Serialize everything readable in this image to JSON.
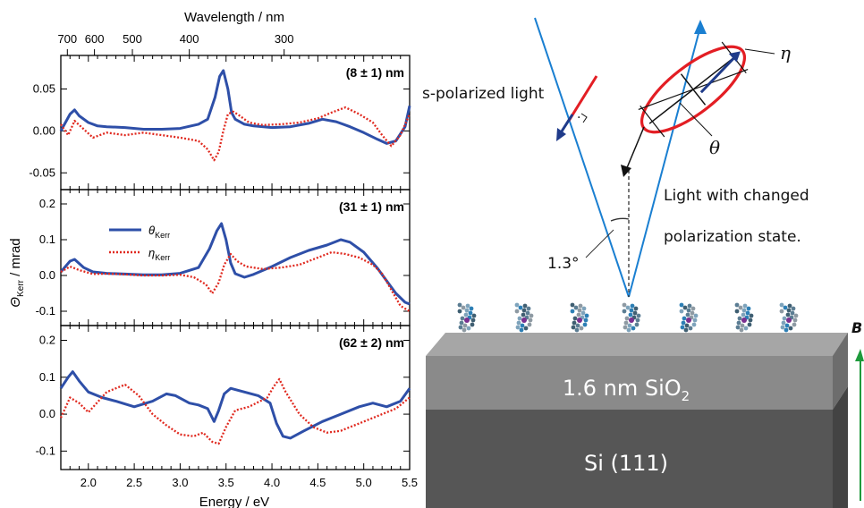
{
  "figure": {
    "top_axis_title": "Wavelength / nm",
    "top_axis_ticks": [
      {
        "label": "700",
        "nm": 700
      },
      {
        "label": "600",
        "nm": 600
      },
      {
        "label": "500",
        "nm": 500
      },
      {
        "label": "400",
        "nm": 400
      },
      {
        "label": "300",
        "nm": 300
      }
    ],
    "x_axis_title": "Energy / eV",
    "y_axis_title_main": "Θ",
    "y_axis_title_sub": "Kerr",
    "y_axis_title_unit": " / mrad",
    "legend": [
      {
        "symbol": "θ",
        "sub": "Kerr",
        "color": "#2e4fa8",
        "style": "solid"
      },
      {
        "symbol": "η",
        "sub": "Kerr",
        "color": "#e0291f",
        "style": "dotted"
      }
    ]
  },
  "chart_data": [
    {
      "type": "line",
      "panel_label": "(8 ± 1) nm",
      "xlim": [
        1.7,
        5.5
      ],
      "ylim": [
        -0.07,
        0.09
      ],
      "yticks": [
        -0.05,
        0.0,
        0.05
      ],
      "ytick_labels": [
        "-0.05",
        "0.00",
        "0.05"
      ],
      "series": [
        {
          "name": "θKerr",
          "color": "#2e4fa8",
          "points": [
            [
              1.7,
              0.0
            ],
            [
              1.8,
              0.02
            ],
            [
              1.85,
              0.025
            ],
            [
              1.9,
              0.018
            ],
            [
              2.0,
              0.01
            ],
            [
              2.1,
              0.006
            ],
            [
              2.2,
              0.005
            ],
            [
              2.4,
              0.004
            ],
            [
              2.6,
              0.002
            ],
            [
              2.8,
              0.002
            ],
            [
              3.0,
              0.003
            ],
            [
              3.2,
              0.008
            ],
            [
              3.3,
              0.014
            ],
            [
              3.38,
              0.04
            ],
            [
              3.43,
              0.065
            ],
            [
              3.47,
              0.072
            ],
            [
              3.52,
              0.05
            ],
            [
              3.56,
              0.022
            ],
            [
              3.6,
              0.014
            ],
            [
              3.7,
              0.008
            ],
            [
              3.8,
              0.006
            ],
            [
              4.0,
              0.004
            ],
            [
              4.2,
              0.005
            ],
            [
              4.4,
              0.009
            ],
            [
              4.55,
              0.014
            ],
            [
              4.7,
              0.011
            ],
            [
              4.85,
              0.005
            ],
            [
              5.0,
              -0.002
            ],
            [
              5.15,
              -0.01
            ],
            [
              5.25,
              -0.015
            ],
            [
              5.35,
              -0.012
            ],
            [
              5.45,
              0.005
            ],
            [
              5.5,
              0.03
            ]
          ]
        },
        {
          "name": "ηKerr",
          "color": "#e0291f",
          "points": [
            [
              1.7,
              0.008
            ],
            [
              1.78,
              -0.005
            ],
            [
              1.85,
              0.012
            ],
            [
              1.95,
              0.002
            ],
            [
              2.05,
              -0.008
            ],
            [
              2.2,
              -0.002
            ],
            [
              2.4,
              -0.005
            ],
            [
              2.6,
              -0.002
            ],
            [
              2.8,
              -0.005
            ],
            [
              3.0,
              -0.008
            ],
            [
              3.2,
              -0.012
            ],
            [
              3.3,
              -0.022
            ],
            [
              3.37,
              -0.035
            ],
            [
              3.42,
              -0.025
            ],
            [
              3.47,
              0.0
            ],
            [
              3.52,
              0.02
            ],
            [
              3.58,
              0.023
            ],
            [
              3.65,
              0.018
            ],
            [
              3.75,
              0.01
            ],
            [
              3.9,
              0.007
            ],
            [
              4.1,
              0.008
            ],
            [
              4.3,
              0.01
            ],
            [
              4.5,
              0.015
            ],
            [
              4.65,
              0.022
            ],
            [
              4.8,
              0.028
            ],
            [
              4.95,
              0.02
            ],
            [
              5.1,
              0.01
            ],
            [
              5.2,
              -0.005
            ],
            [
              5.3,
              -0.018
            ],
            [
              5.4,
              -0.005
            ],
            [
              5.5,
              0.02
            ]
          ]
        }
      ]
    },
    {
      "type": "line",
      "panel_label": "(31 ± 1) nm",
      "xlim": [
        1.7,
        5.5
      ],
      "ylim": [
        -0.14,
        0.24
      ],
      "yticks": [
        -0.1,
        0.0,
        0.1,
        0.2
      ],
      "ytick_labels": [
        "-0.1",
        "0.0",
        "0.1",
        "0.2"
      ],
      "series": [
        {
          "name": "θKerr",
          "color": "#2e4fa8",
          "points": [
            [
              1.7,
              0.01
            ],
            [
              1.8,
              0.04
            ],
            [
              1.85,
              0.045
            ],
            [
              1.95,
              0.022
            ],
            [
              2.05,
              0.01
            ],
            [
              2.2,
              0.006
            ],
            [
              2.4,
              0.004
            ],
            [
              2.6,
              0.002
            ],
            [
              2.8,
              0.002
            ],
            [
              3.0,
              0.006
            ],
            [
              3.2,
              0.022
            ],
            [
              3.32,
              0.075
            ],
            [
              3.4,
              0.125
            ],
            [
              3.45,
              0.145
            ],
            [
              3.5,
              0.1
            ],
            [
              3.55,
              0.035
            ],
            [
              3.6,
              0.005
            ],
            [
              3.7,
              -0.005
            ],
            [
              3.8,
              0.003
            ],
            [
              4.0,
              0.025
            ],
            [
              4.2,
              0.05
            ],
            [
              4.4,
              0.07
            ],
            [
              4.6,
              0.085
            ],
            [
              4.75,
              0.1
            ],
            [
              4.85,
              0.093
            ],
            [
              5.0,
              0.065
            ],
            [
              5.15,
              0.02
            ],
            [
              5.25,
              -0.015
            ],
            [
              5.35,
              -0.05
            ],
            [
              5.45,
              -0.075
            ],
            [
              5.5,
              -0.08
            ]
          ]
        },
        {
          "name": "ηKerr",
          "color": "#e0291f",
          "points": [
            [
              1.7,
              0.01
            ],
            [
              1.8,
              0.025
            ],
            [
              1.9,
              0.015
            ],
            [
              2.05,
              0.004
            ],
            [
              2.2,
              0.005
            ],
            [
              2.4,
              0.003
            ],
            [
              2.6,
              0.0
            ],
            [
              2.8,
              0.0
            ],
            [
              3.0,
              0.002
            ],
            [
              3.15,
              -0.005
            ],
            [
              3.28,
              -0.025
            ],
            [
              3.35,
              -0.05
            ],
            [
              3.42,
              -0.02
            ],
            [
              3.48,
              0.03
            ],
            [
              3.55,
              0.06
            ],
            [
              3.62,
              0.04
            ],
            [
              3.72,
              0.025
            ],
            [
              3.9,
              0.018
            ],
            [
              4.1,
              0.022
            ],
            [
              4.3,
              0.03
            ],
            [
              4.5,
              0.05
            ],
            [
              4.65,
              0.065
            ],
            [
              4.8,
              0.06
            ],
            [
              4.95,
              0.05
            ],
            [
              5.1,
              0.03
            ],
            [
              5.2,
              0.005
            ],
            [
              5.3,
              -0.04
            ],
            [
              5.4,
              -0.085
            ],
            [
              5.5,
              -0.1
            ]
          ]
        }
      ]
    },
    {
      "type": "line",
      "panel_label": "(62 ± 2) nm",
      "xlim": [
        1.7,
        5.5
      ],
      "ylim": [
        -0.15,
        0.24
      ],
      "yticks": [
        -0.1,
        0.0,
        0.1,
        0.2
      ],
      "ytick_labels": [
        "-0.1",
        "0.0",
        "0.1",
        "0.2"
      ],
      "series": [
        {
          "name": "θKerr",
          "color": "#2e4fa8",
          "points": [
            [
              1.7,
              0.07
            ],
            [
              1.78,
              0.1
            ],
            [
              1.83,
              0.115
            ],
            [
              1.9,
              0.09
            ],
            [
              2.0,
              0.06
            ],
            [
              2.15,
              0.045
            ],
            [
              2.3,
              0.035
            ],
            [
              2.5,
              0.02
            ],
            [
              2.7,
              0.035
            ],
            [
              2.85,
              0.055
            ],
            [
              2.95,
              0.05
            ],
            [
              3.1,
              0.03
            ],
            [
              3.2,
              0.025
            ],
            [
              3.3,
              0.015
            ],
            [
              3.37,
              -0.02
            ],
            [
              3.42,
              0.01
            ],
            [
              3.48,
              0.055
            ],
            [
              3.55,
              0.07
            ],
            [
              3.7,
              0.06
            ],
            [
              3.85,
              0.05
            ],
            [
              3.98,
              0.03
            ],
            [
              4.05,
              -0.025
            ],
            [
              4.12,
              -0.06
            ],
            [
              4.2,
              -0.065
            ],
            [
              4.35,
              -0.045
            ],
            [
              4.55,
              -0.02
            ],
            [
              4.75,
              0.0
            ],
            [
              4.95,
              0.02
            ],
            [
              5.1,
              0.03
            ],
            [
              5.25,
              0.02
            ],
            [
              5.4,
              0.035
            ],
            [
              5.5,
              0.07
            ]
          ]
        },
        {
          "name": "ηKerr",
          "color": "#e0291f",
          "points": [
            [
              1.7,
              -0.01
            ],
            [
              1.8,
              0.045
            ],
            [
              1.9,
              0.03
            ],
            [
              2.0,
              0.005
            ],
            [
              2.2,
              0.06
            ],
            [
              2.4,
              0.08
            ],
            [
              2.55,
              0.05
            ],
            [
              2.7,
              0.0
            ],
            [
              2.85,
              -0.03
            ],
            [
              3.0,
              -0.055
            ],
            [
              3.15,
              -0.06
            ],
            [
              3.25,
              -0.05
            ],
            [
              3.35,
              -0.075
            ],
            [
              3.42,
              -0.08
            ],
            [
              3.5,
              -0.035
            ],
            [
              3.6,
              0.01
            ],
            [
              3.75,
              0.02
            ],
            [
              3.95,
              0.045
            ],
            [
              4.02,
              0.075
            ],
            [
              4.08,
              0.095
            ],
            [
              4.15,
              0.06
            ],
            [
              4.3,
              0.0
            ],
            [
              4.45,
              -0.035
            ],
            [
              4.6,
              -0.05
            ],
            [
              4.75,
              -0.045
            ],
            [
              4.9,
              -0.03
            ],
            [
              5.05,
              -0.015
            ],
            [
              5.2,
              0.0
            ],
            [
              5.35,
              0.015
            ],
            [
              5.5,
              0.045
            ]
          ]
        }
      ]
    }
  ],
  "diagram": {
    "s_pol_label": "s-polarized light",
    "changed_label_line1": "Light with changed",
    "changed_label_line2": "polarization state.",
    "angle_label": "1.3°",
    "eta_symbol": "η",
    "theta_symbol": "θ",
    "oxide_label_main": "1.6 nm SiO",
    "oxide_label_sub": "2",
    "substrate_label": "Si (111)",
    "field_label": "B",
    "colors": {
      "beam": "#1a7fd1",
      "ellipse": "#e31e24",
      "arrow_dark": "#1f3b8a",
      "oxide_front": "#8a8a8a",
      "oxide_top": "#a6a6a6",
      "oxide_side": "#6d6d6d",
      "si_front": "#565656",
      "si_side": "#434343",
      "field_arrow": "#1e9a3c",
      "molecule": "#6f8fa5"
    }
  }
}
